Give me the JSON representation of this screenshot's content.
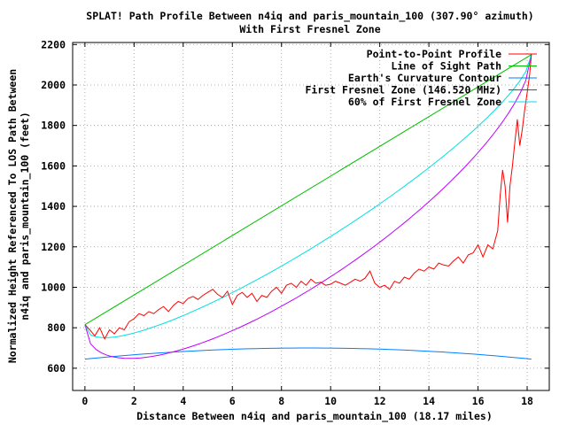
{
  "chart_data": {
    "type": "line",
    "title": [
      "SPLAT! Path Profile Between n4iq and paris_mountain_100 (307.90° azimuth)",
      "With First Fresnel Zone"
    ],
    "xlabel": "Distance Between n4iq and paris_mountain_100 (18.17 miles)",
    "ylabel": [
      "Normalized Height Referenced To LOS Path Between",
      "n4iq and paris_mountain_100 (feet)"
    ],
    "xlim": [
      -0.5,
      18.9
    ],
    "ylim": [
      490,
      2210
    ],
    "xticks": [
      0,
      2,
      4,
      6,
      8,
      10,
      12,
      14,
      16,
      18
    ],
    "yticks": [
      600,
      800,
      1000,
      1200,
      1400,
      1600,
      1800,
      2000,
      2200
    ],
    "grid": true,
    "legend_position": "top-right",
    "series": [
      {
        "name": "Point-to-Point Profile",
        "color": "#ff0000",
        "x": [
          0,
          0.2,
          0.4,
          0.6,
          0.8,
          1.0,
          1.2,
          1.4,
          1.6,
          1.8,
          2.0,
          2.2,
          2.4,
          2.6,
          2.8,
          3.0,
          3.2,
          3.4,
          3.6,
          3.8,
          4.0,
          4.2,
          4.4,
          4.6,
          4.8,
          5.0,
          5.2,
          5.4,
          5.6,
          5.8,
          6.0,
          6.2,
          6.4,
          6.6,
          6.8,
          7.0,
          7.2,
          7.4,
          7.6,
          7.8,
          8.0,
          8.2,
          8.4,
          8.6,
          8.8,
          9.0,
          9.2,
          9.4,
          9.6,
          9.8,
          10.0,
          10.2,
          10.4,
          10.6,
          10.8,
          11.0,
          11.2,
          11.4,
          11.6,
          11.8,
          12.0,
          12.2,
          12.4,
          12.6,
          12.8,
          13.0,
          13.2,
          13.4,
          13.6,
          13.8,
          14.0,
          14.2,
          14.4,
          14.6,
          14.8,
          15.0,
          15.2,
          15.4,
          15.6,
          15.8,
          16.0,
          16.2,
          16.4,
          16.6,
          16.8,
          16.9,
          17.0,
          17.1,
          17.2,
          17.3,
          17.4,
          17.5,
          17.6,
          17.7,
          17.8,
          17.9,
          18.0,
          18.1,
          18.17
        ],
        "y": [
          815,
          790,
          760,
          800,
          745,
          790,
          770,
          800,
          790,
          830,
          845,
          870,
          860,
          880,
          870,
          890,
          905,
          880,
          910,
          930,
          920,
          945,
          955,
          940,
          960,
          975,
          990,
          965,
          950,
          980,
          915,
          960,
          975,
          950,
          970,
          930,
          960,
          950,
          980,
          1000,
          970,
          1010,
          1020,
          1000,
          1030,
          1010,
          1040,
          1020,
          1025,
          1010,
          1015,
          1030,
          1020,
          1010,
          1025,
          1040,
          1030,
          1045,
          1080,
          1020,
          1000,
          1010,
          990,
          1030,
          1020,
          1050,
          1040,
          1070,
          1090,
          1080,
          1100,
          1090,
          1120,
          1110,
          1105,
          1130,
          1150,
          1120,
          1160,
          1170,
          1210,
          1150,
          1210,
          1190,
          1280,
          1450,
          1580,
          1500,
          1320,
          1500,
          1600,
          1720,
          1830,
          1700,
          1780,
          1880,
          1960,
          2050,
          2150
        ]
      },
      {
        "name": "Line of Sight Path",
        "color": "#00c000",
        "x": [
          0,
          18.17
        ],
        "y": [
          815,
          2150
        ]
      },
      {
        "name": "Earth's Curvature Contour",
        "color": "#0080ff",
        "x": [
          0,
          18.17
        ],
        "y": [
          645,
          645
        ],
        "curvature_max": 700
      },
      {
        "name": "First Fresnel Zone (146.520 MHz)",
        "color": "#c000ff",
        "x": [
          0,
          18.17
        ],
        "y": [
          815,
          2150
        ],
        "fresnel_radius_mid": 500
      },
      {
        "name": "60% of First Fresnel Zone",
        "color": "#00e0e0",
        "x": [
          0,
          18.17
        ],
        "y": [
          815,
          2150
        ],
        "fresnel_radius_mid": 300
      }
    ]
  }
}
